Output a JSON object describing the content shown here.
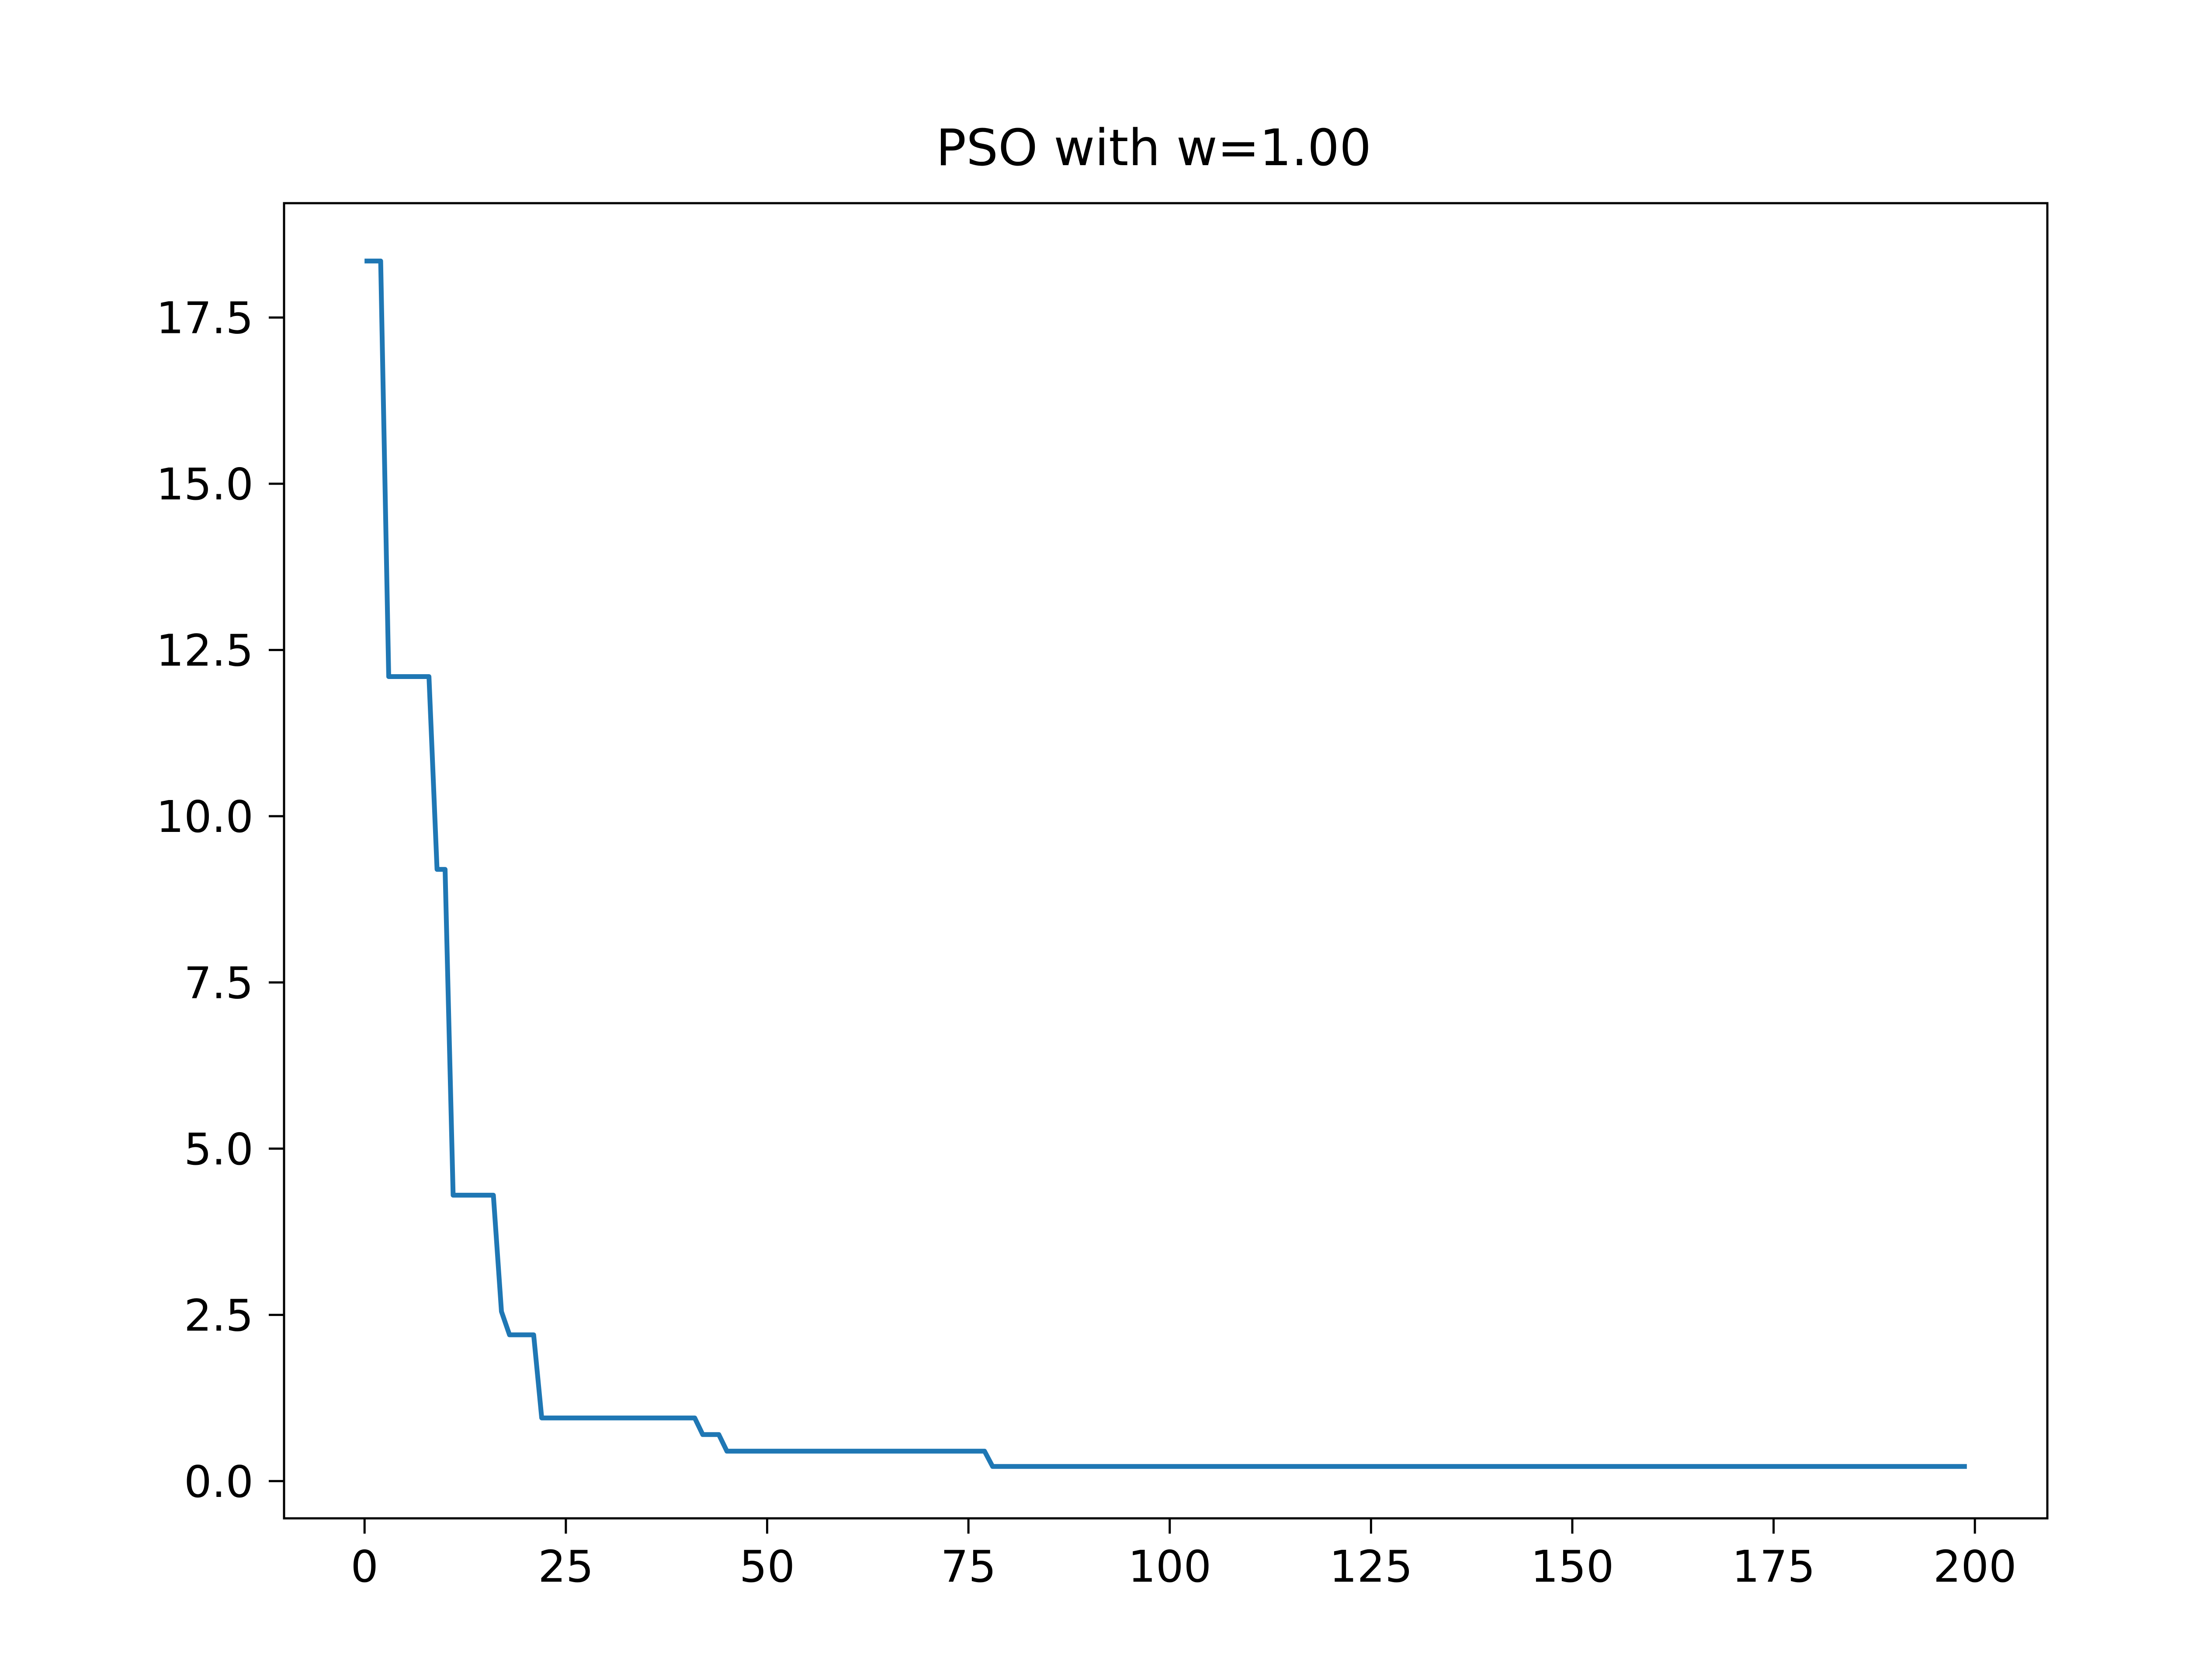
{
  "chart_data": {
    "type": "line",
    "title": "PSO with w=1.00",
    "xlabel": "",
    "ylabel": "",
    "xlim": [
      -10,
      209
    ],
    "ylim": [
      -0.56,
      19.22
    ],
    "x_ticks": [
      0,
      25,
      50,
      75,
      100,
      125,
      150,
      175,
      200
    ],
    "x_tick_labels": [
      "0",
      "25",
      "50",
      "75",
      "100",
      "125",
      "150",
      "175",
      "200"
    ],
    "y_ticks": [
      0.0,
      2.5,
      5.0,
      7.5,
      10.0,
      12.5,
      15.0,
      17.5
    ],
    "y_tick_labels": [
      "0.0",
      "2.5",
      "5.0",
      "7.5",
      "10.0",
      "12.5",
      "15.0",
      "17.5"
    ],
    "grid": false,
    "legend": "none",
    "series": [
      {
        "color": "#1f77b4",
        "x": [
          0,
          2,
          3,
          8,
          9,
          10,
          11,
          16,
          17,
          18,
          21,
          22,
          41,
          42,
          44,
          45,
          77,
          78,
          199
        ],
        "y": [
          18.35,
          18.35,
          12.1,
          12.1,
          9.2,
          9.2,
          4.3,
          4.3,
          2.55,
          2.2,
          2.2,
          0.95,
          0.95,
          0.7,
          0.7,
          0.45,
          0.45,
          0.22,
          0.22
        ]
      }
    ]
  }
}
